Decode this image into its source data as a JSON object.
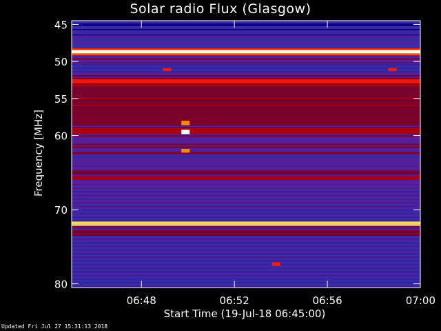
{
  "chart_data": {
    "type": "heatmap",
    "title": "Solar radio Flux (Glasgow)",
    "xlabel": "Start Time (19-Jul-18 06:45:00)",
    "ylabel": "Frequency [MHz]",
    "x_range_minutes": [
      0,
      15
    ],
    "x_ticks": [
      {
        "minute": 3,
        "label": "06:48"
      },
      {
        "minute": 7,
        "label": "06:52"
      },
      {
        "minute": 11,
        "label": "06:56"
      },
      {
        "minute": 15,
        "label": "07:00"
      }
    ],
    "y_range_mhz": [
      44.5,
      80.5
    ],
    "y_ticks": [
      45,
      50,
      55,
      60,
      70,
      80
    ],
    "y_inverted": true,
    "colormap": [
      "#0a0080",
      "#3a2aa8",
      "#55209a",
      "#800028",
      "#b00010",
      "#ff1800",
      "#ff8a00",
      "#ffe060",
      "#ffffff"
    ],
    "bands": [
      {
        "f0": 44.5,
        "f1": 46.5,
        "level": 0.08
      },
      {
        "f0": 46.5,
        "f1": 48.2,
        "level": 0.18
      },
      {
        "f0": 48.2,
        "f1": 48.5,
        "level": 0.7
      },
      {
        "f0": 48.5,
        "f1": 48.9,
        "level": 1.0
      },
      {
        "f0": 48.9,
        "f1": 49.2,
        "level": 0.72
      },
      {
        "f0": 49.2,
        "f1": 50.2,
        "level": 0.3
      },
      {
        "f0": 50.2,
        "f1": 51.5,
        "level": 0.12
      },
      {
        "f0": 51.5,
        "f1": 52.4,
        "level": 0.32
      },
      {
        "f0": 52.4,
        "f1": 52.9,
        "level": 0.6
      },
      {
        "f0": 52.9,
        "f1": 53.4,
        "level": 0.45
      },
      {
        "f0": 53.4,
        "f1": 57.0,
        "level": 0.4
      },
      {
        "f0": 57.0,
        "f1": 59.0,
        "level": 0.36
      },
      {
        "f0": 59.0,
        "f1": 59.8,
        "level": 0.52
      },
      {
        "f0": 59.8,
        "f1": 62.5,
        "level": 0.3
      },
      {
        "f0": 62.5,
        "f1": 64.0,
        "level": 0.22
      },
      {
        "f0": 64.0,
        "f1": 65.5,
        "level": 0.35
      },
      {
        "f0": 65.5,
        "f1": 66.0,
        "level": 0.5
      },
      {
        "f0": 66.0,
        "f1": 67.5,
        "level": 0.25
      },
      {
        "f0": 67.5,
        "f1": 71.6,
        "level": 0.2
      },
      {
        "f0": 71.6,
        "f1": 72.2,
        "level": 0.85
      },
      {
        "f0": 72.2,
        "f1": 73.5,
        "level": 0.32
      },
      {
        "f0": 73.5,
        "f1": 80.5,
        "level": 0.15
      }
    ],
    "bursts": [
      {
        "minute": 4.9,
        "f0": 58.0,
        "f1": 58.6,
        "level": 0.8
      },
      {
        "minute": 4.9,
        "f0": 59.2,
        "f1": 59.8,
        "level": 0.95
      },
      {
        "minute": 4.9,
        "f0": 61.8,
        "f1": 62.3,
        "level": 0.7
      },
      {
        "minute": 4.1,
        "f0": 50.9,
        "f1": 51.3,
        "level": 0.6
      },
      {
        "minute": 13.8,
        "f0": 50.9,
        "f1": 51.3,
        "level": 0.6
      },
      {
        "minute": 8.8,
        "f0": 77.1,
        "f1": 77.6,
        "level": 0.65
      }
    ]
  },
  "footer": "Updated Fri Jul 27 15:31:13 2018"
}
